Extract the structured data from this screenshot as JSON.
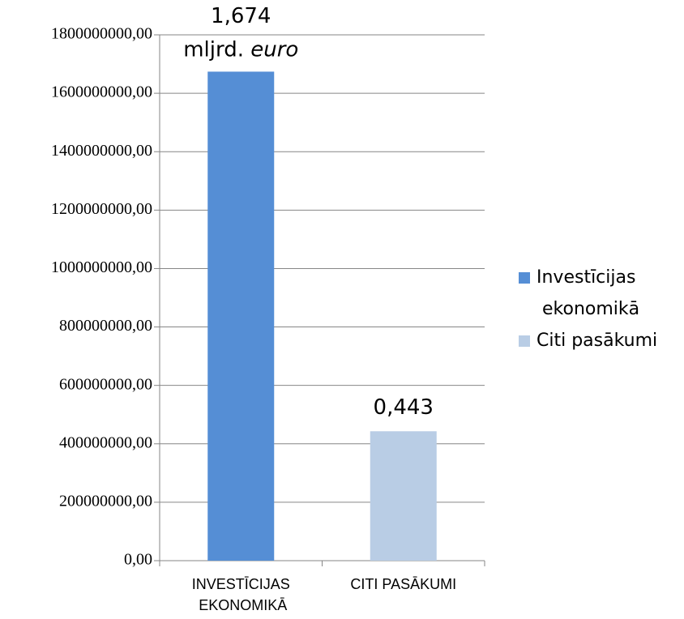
{
  "chart_data": {
    "type": "bar",
    "categories": [
      "INVESTĪCIJAS EKONOMIKĀ",
      "CITI PASĀKUMI"
    ],
    "series": [
      {
        "name": "Investīcijas ekonomikā",
        "color": "#558ed5",
        "values": [
          1674000000,
          null
        ],
        "value_labels": [
          "1,674",
          null
        ]
      },
      {
        "name": "Citi pasākumi",
        "color": "#b9cde5",
        "values": [
          null,
          443000000
        ],
        "value_labels": [
          null,
          "0,443"
        ]
      }
    ],
    "unit_label": [
      "mljrd.",
      "euro"
    ],
    "ylim": [
      0,
      1800000000
    ],
    "yticks": [
      {
        "value": 0,
        "label": "0,00"
      },
      {
        "value": 200000000,
        "label": "200000000,00"
      },
      {
        "value": 400000000,
        "label": "400000000,00"
      },
      {
        "value": 600000000,
        "label": "600000000,00"
      },
      {
        "value": 800000000,
        "label": "800000000,00"
      },
      {
        "value": 1000000000,
        "label": "1000000000,00"
      },
      {
        "value": 1200000000,
        "label": "1200000000,00"
      },
      {
        "value": 1400000000,
        "label": "1400000000,00"
      },
      {
        "value": 1600000000,
        "label": "1600000000,00"
      },
      {
        "value": 1800000000,
        "label": "1800000000,00"
      }
    ],
    "grid": true,
    "legend": "right"
  }
}
